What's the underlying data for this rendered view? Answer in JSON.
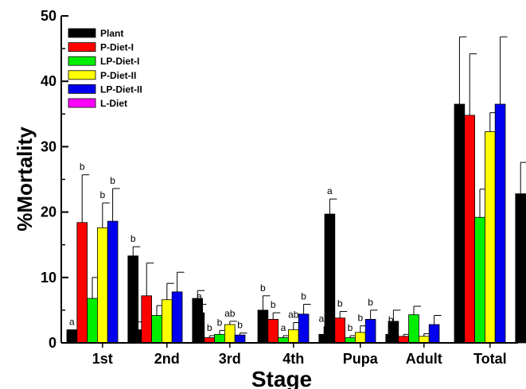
{
  "chart_data": {
    "type": "bar",
    "title": "",
    "xlabel": "Stage",
    "ylabel": "%Mortality",
    "ylim": [
      0,
      50
    ],
    "yticks": [
      "0",
      "10",
      "20",
      "30",
      "40",
      "50"
    ],
    "categories": [
      "1st",
      "2nd",
      "3rd",
      "4th",
      "Pupa",
      "Adult",
      "Total"
    ],
    "legend_position": "top-left",
    "series": [
      {
        "name": "Plant",
        "color": "#000000",
        "values": [
          2.0,
          2.0,
          4.6,
          5.0,
          19.7,
          3.3,
          36.5
        ],
        "errors": [
          0,
          1.2,
          1.3,
          2.2,
          2.3,
          1.7,
          10.3
        ],
        "labels": [
          "a",
          "",
          "a",
          "b",
          "a",
          "",
          ""
        ]
      },
      {
        "name": "P-Diet-I",
        "color": "#ff0000",
        "values": [
          18.4,
          7.2,
          0.8,
          3.6,
          3.8,
          1.0,
          34.8
        ],
        "errors": [
          7.3,
          5.0,
          0.3,
          1.0,
          1.0,
          0.3,
          9.4
        ],
        "labels": [
          "b",
          "",
          "b",
          "b",
          "b",
          "",
          ""
        ]
      },
      {
        "name": "LP-Diet-I",
        "color": "#00ee00",
        "values": [
          6.8,
          4.2,
          1.3,
          0.8,
          0.8,
          4.3,
          19.2
        ],
        "errors": [
          3.2,
          1.5,
          0.6,
          0.3,
          0.3,
          1.3,
          4.3
        ],
        "labels": [
          "",
          "",
          "b",
          "a",
          "b",
          "",
          ""
        ]
      },
      {
        "name": "P-Diet-II",
        "color": "#ffff00",
        "values": [
          17.6,
          6.6,
          2.8,
          2.0,
          1.6,
          1.0,
          32.3
        ],
        "errors": [
          3.8,
          2.5,
          0.5,
          1.1,
          1.0,
          0.4,
          2.9
        ],
        "labels": [
          "b",
          "",
          "ab",
          "ab",
          "b",
          "",
          ""
        ]
      },
      {
        "name": "LP-Diet-II",
        "color": "#0000ee",
        "values": [
          18.6,
          7.8,
          1.2,
          4.4,
          3.6,
          2.8,
          36.5
        ],
        "errors": [
          5.0,
          3.0,
          0.3,
          1.5,
          1.4,
          1.4,
          10.3
        ],
        "labels": [
          "b",
          "",
          "b",
          "b",
          "b",
          "",
          ""
        ]
      },
      {
        "name": "L-Diet",
        "color": "#ff00ff",
        "values": [
          0,
          0,
          0,
          0,
          0,
          0,
          0
        ],
        "errors": [
          0,
          0,
          0,
          0,
          0,
          0,
          0
        ],
        "labels": [
          "",
          "",
          "",
          "",
          "",
          "",
          ""
        ]
      },
      {
        "name": "",
        "color": "#000000",
        "values": [
          13.3,
          6.8,
          0,
          1.3,
          1.3,
          0,
          22.8
        ],
        "errors": [
          1.4,
          1.2,
          0,
          1.2,
          1.0,
          0,
          4.8
        ],
        "labels": [
          "b",
          "",
          "",
          "ab",
          "b",
          "",
          ""
        ]
      }
    ]
  }
}
